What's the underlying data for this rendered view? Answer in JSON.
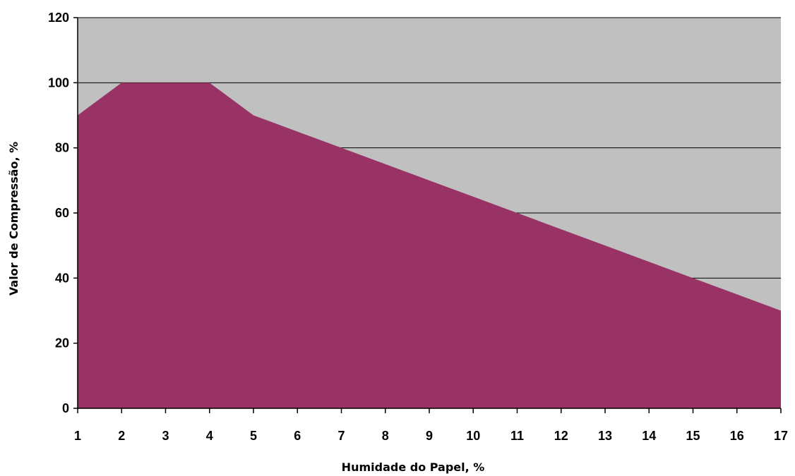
{
  "chart_data": {
    "type": "area",
    "title": "",
    "xlabel": "Humidade do Papel, %",
    "ylabel": "Valor de Compressão, %",
    "x": [
      1,
      2,
      3,
      4,
      5,
      6,
      7,
      8,
      9,
      10,
      11,
      12,
      13,
      14,
      15,
      16,
      17
    ],
    "x_tick_labels": [
      "1",
      "2",
      "3",
      "4",
      "5",
      "6",
      "7",
      "8",
      "9",
      "10",
      "11",
      "12",
      "13",
      "14",
      "15",
      "16",
      "17"
    ],
    "y_ticks": [
      0,
      20,
      40,
      60,
      80,
      100,
      120
    ],
    "y_tick_labels": [
      "0",
      "20",
      "40",
      "60",
      "80",
      "100",
      "120"
    ],
    "series": [
      {
        "values": [
          90,
          100,
          100,
          100,
          90,
          85,
          80,
          75,
          70,
          65,
          60,
          55,
          50,
          45,
          40,
          35,
          30
        ]
      }
    ],
    "xlim": [
      1,
      17
    ],
    "ylim": [
      0,
      120
    ],
    "grid": "horizontal",
    "legend": "none",
    "colors": {
      "area_fill": "#993366",
      "plot_background": "#c0c0c0",
      "gridline": "#000000",
      "axis": "#000000"
    }
  }
}
